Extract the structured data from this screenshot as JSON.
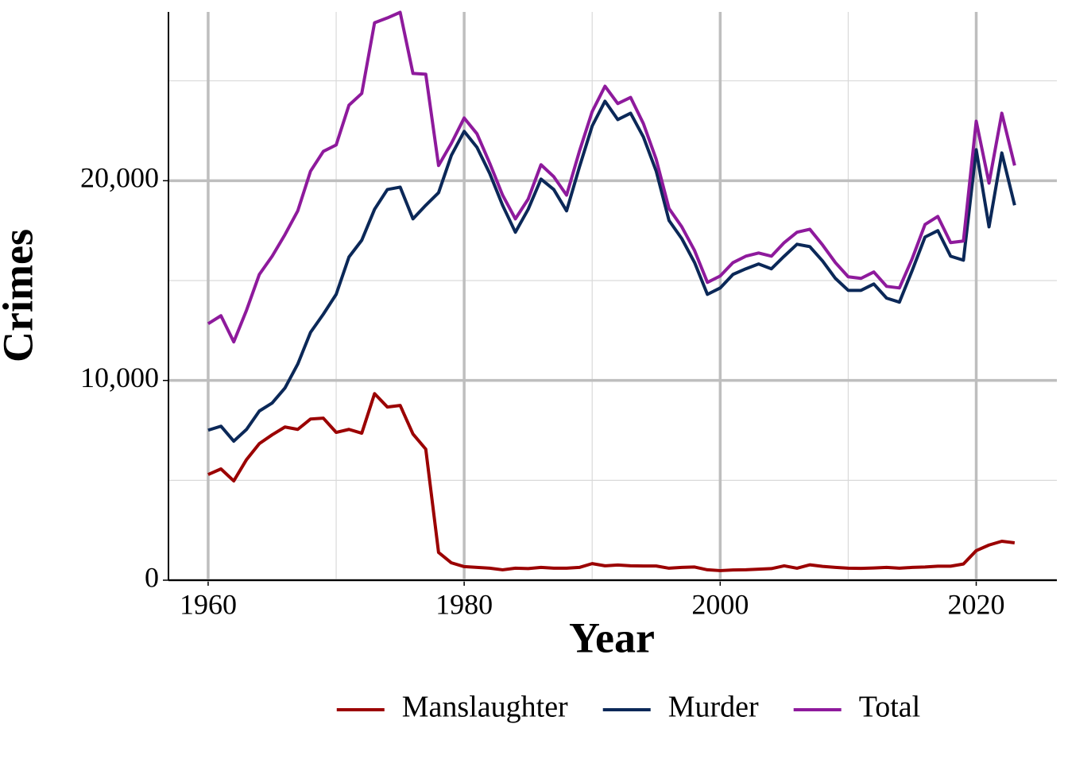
{
  "chart_data": {
    "type": "line",
    "x_label": "Year",
    "y_label": "Crimes",
    "x": [
      1960,
      1961,
      1962,
      1963,
      1964,
      1965,
      1966,
      1967,
      1968,
      1969,
      1970,
      1971,
      1972,
      1973,
      1974,
      1975,
      1976,
      1977,
      1978,
      1979,
      1980,
      1981,
      1982,
      1983,
      1984,
      1985,
      1986,
      1987,
      1988,
      1989,
      1990,
      1991,
      1992,
      1993,
      1994,
      1995,
      1996,
      1997,
      1998,
      1999,
      2000,
      2001,
      2002,
      2003,
      2004,
      2005,
      2006,
      2007,
      2008,
      2009,
      2010,
      2011,
      2012,
      2013,
      2014,
      2015,
      2016,
      2017,
      2018,
      2019,
      2020,
      2021,
      2022,
      2023
    ],
    "series": [
      {
        "name": "Manslaughter",
        "color": "#9b0000",
        "values": [
          5290,
          5570,
          4970,
          6040,
          6840,
          7280,
          7670,
          7550,
          8070,
          8110,
          7400,
          7550,
          7360,
          9340,
          8670,
          8750,
          7320,
          6560,
          1390,
          870,
          680,
          640,
          600,
          520,
          600,
          580,
          640,
          600,
          600,
          640,
          830,
          720,
          760,
          720,
          710,
          710,
          600,
          640,
          660,
          520,
          480,
          510,
          520,
          550,
          580,
          720,
          600,
          770,
          690,
          640,
          600,
          590,
          610,
          640,
          600,
          640,
          660,
          700,
          700,
          810,
          1480,
          1760,
          1950,
          1870
        ]
      },
      {
        "name": "Murder",
        "color": "#0b2858",
        "values": [
          7510,
          7710,
          6960,
          7550,
          8470,
          8870,
          9620,
          10820,
          12410,
          13320,
          14310,
          16180,
          17020,
          18570,
          19560,
          19680,
          18090,
          18770,
          19400,
          21270,
          22470,
          21670,
          20360,
          18770,
          17420,
          18570,
          20080,
          19560,
          18490,
          20680,
          22740,
          23980,
          23060,
          23380,
          22190,
          20480,
          18010,
          17100,
          15900,
          14310,
          14630,
          15310,
          15590,
          15830,
          15590,
          16220,
          16820,
          16700,
          15980,
          15110,
          14510,
          14510,
          14830,
          14120,
          13920,
          15510,
          17180,
          17500,
          16220,
          16020,
          21550,
          17690,
          21390,
          18770
        ]
      },
      {
        "name": "Total",
        "color": "#8e1a9c",
        "values": [
          12840,
          13240,
          11930,
          13520,
          15310,
          16220,
          17300,
          18490,
          20480,
          21470,
          21790,
          23780,
          24370,
          27910,
          28150,
          28430,
          25370,
          25330,
          20760,
          21870,
          23140,
          22350,
          20870,
          19280,
          18090,
          19080,
          20800,
          20200,
          19280,
          21470,
          23460,
          24730,
          23860,
          24170,
          22860,
          21070,
          18610,
          17690,
          16500,
          14910,
          15230,
          15900,
          16220,
          16380,
          16220,
          16900,
          17420,
          17570,
          16780,
          15900,
          15190,
          15110,
          15430,
          14710,
          14630,
          16100,
          17810,
          18210,
          16900,
          16980,
          22980,
          19880,
          23380,
          20760
        ]
      }
    ],
    "xlim": [
      1956.9,
      2026.3
    ],
    "xticks": [
      1960,
      1980,
      2000,
      2020
    ],
    "xminor": [
      1970,
      1990,
      2010
    ],
    "ylim": [
      0,
      28450
    ],
    "yticks": [
      0,
      {
        "value": 10000,
        "label": "10,000"
      },
      {
        "value": 20000,
        "label": "20,000"
      }
    ],
    "yminor": [
      5000,
      15000,
      25000
    ],
    "grid": true,
    "legend": "bottom"
  }
}
